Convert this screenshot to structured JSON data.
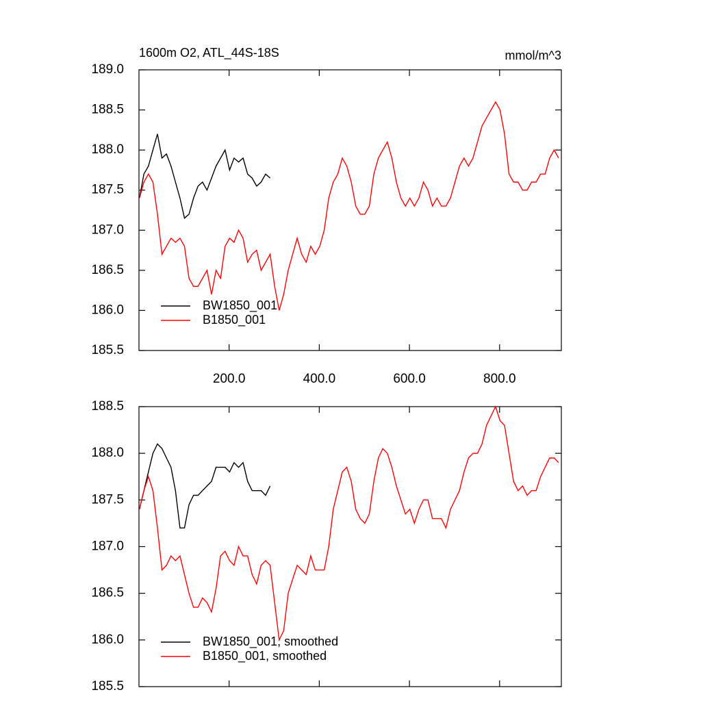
{
  "chart_data": [
    {
      "type": "line",
      "title": "1600m O2, ATL_44S-18S",
      "units": "mmol/m^3",
      "xlim": [
        0,
        937
      ],
      "ylim": [
        185.5,
        189.0
      ],
      "xticks": [
        {
          "value": 200,
          "label": "200.0"
        },
        {
          "value": 400,
          "label": "400.0"
        },
        {
          "value": 600,
          "label": "600.0"
        },
        {
          "value": 800,
          "label": "800.0"
        }
      ],
      "xtick_labels": true,
      "yticks": [
        185.5,
        {
          "value": 186,
          "label": "186.0"
        },
        186.5,
        {
          "value": 187,
          "label": "187.0"
        },
        187.5,
        {
          "value": 188,
          "label": "188.0"
        },
        188.5,
        {
          "value": 189,
          "label": "189.0"
        }
      ],
      "legend": "lower left",
      "series": [
        {
          "name": "BW1850_001",
          "color": "#000000",
          "x": [
            1,
            11,
            21,
            31,
            41,
            51,
            61,
            71,
            81,
            91,
            101,
            111,
            121,
            131,
            141,
            151,
            161,
            171,
            181,
            191,
            201,
            211,
            221,
            231,
            241,
            251,
            261,
            271,
            281,
            291
          ],
          "values": [
            187.4,
            187.7,
            187.8,
            188.0,
            188.2,
            187.9,
            187.95,
            187.8,
            187.6,
            187.4,
            187.15,
            187.2,
            187.4,
            187.55,
            187.6,
            187.5,
            187.65,
            187.8,
            187.9,
            188.0,
            187.75,
            187.9,
            187.85,
            187.9,
            187.7,
            187.65,
            187.55,
            187.6,
            187.7,
            187.65
          ]
        },
        {
          "name": "B1850_001",
          "color": "#ff0000",
          "x": [
            1,
            11,
            21,
            31,
            41,
            51,
            61,
            71,
            81,
            91,
            101,
            111,
            121,
            131,
            141,
            151,
            161,
            171,
            181,
            191,
            201,
            211,
            221,
            231,
            241,
            251,
            261,
            271,
            281,
            291,
            301,
            311,
            321,
            331,
            341,
            351,
            361,
            371,
            381,
            391,
            401,
            411,
            421,
            431,
            441,
            451,
            461,
            471,
            481,
            491,
            501,
            511,
            521,
            531,
            541,
            551,
            561,
            571,
            581,
            591,
            601,
            611,
            621,
            631,
            641,
            651,
            661,
            671,
            681,
            691,
            701,
            711,
            721,
            731,
            741,
            751,
            761,
            771,
            781,
            791,
            801,
            811,
            821,
            831,
            841,
            851,
            861,
            871,
            881,
            891,
            901,
            911,
            921,
            931
          ],
          "values": [
            187.4,
            187.6,
            187.7,
            187.6,
            187.2,
            186.7,
            186.8,
            186.9,
            186.85,
            186.9,
            186.8,
            186.4,
            186.3,
            186.3,
            186.4,
            186.5,
            186.2,
            186.5,
            186.4,
            186.8,
            186.9,
            186.85,
            187.0,
            186.9,
            186.6,
            186.7,
            186.75,
            186.5,
            186.6,
            186.7,
            186.3,
            186.0,
            186.2,
            186.5,
            186.7,
            186.9,
            186.7,
            186.6,
            186.8,
            186.7,
            186.8,
            187.0,
            187.4,
            187.6,
            187.7,
            187.9,
            187.8,
            187.6,
            187.3,
            187.2,
            187.2,
            187.3,
            187.7,
            187.9,
            188.0,
            188.1,
            187.9,
            187.6,
            187.4,
            187.3,
            187.4,
            187.3,
            187.4,
            187.6,
            187.5,
            187.3,
            187.4,
            187.3,
            187.3,
            187.4,
            187.6,
            187.8,
            187.9,
            187.8,
            187.9,
            188.1,
            188.3,
            188.4,
            188.5,
            188.6,
            188.5,
            188.2,
            187.7,
            187.6,
            187.6,
            187.5,
            187.5,
            187.6,
            187.6,
            187.7,
            187.7,
            187.9,
            188.0,
            187.9
          ]
        }
      ]
    },
    {
      "type": "line",
      "xlim": [
        0,
        937
      ],
      "ylim": [
        185.5,
        188.5
      ],
      "xticks": [
        200,
        400,
        600,
        800
      ],
      "xtick_labels": false,
      "yticks": [
        185.5,
        {
          "value": 186,
          "label": "186.0"
        },
        186.5,
        {
          "value": 187,
          "label": "187.0"
        },
        187.5,
        {
          "value": 188,
          "label": "188.0"
        },
        188.5
      ],
      "legend": "lower left",
      "series": [
        {
          "name": "BW1850_001, smoothed",
          "color": "#000000",
          "x": [
            1,
            11,
            21,
            31,
            41,
            51,
            61,
            71,
            81,
            91,
            101,
            111,
            121,
            131,
            141,
            151,
            161,
            171,
            181,
            191,
            201,
            211,
            221,
            231,
            241,
            251,
            261,
            271,
            281,
            291
          ],
          "values": [
            187.4,
            187.6,
            187.8,
            188.0,
            188.1,
            188.05,
            187.95,
            187.85,
            187.6,
            187.2,
            187.2,
            187.45,
            187.55,
            187.55,
            187.6,
            187.65,
            187.7,
            187.85,
            187.85,
            187.85,
            187.8,
            187.9,
            187.85,
            187.9,
            187.7,
            187.6,
            187.6,
            187.6,
            187.55,
            187.65
          ]
        },
        {
          "name": "B1850_001, smoothed",
          "color": "#ff0000",
          "x": [
            1,
            11,
            21,
            31,
            41,
            51,
            61,
            71,
            81,
            91,
            101,
            111,
            121,
            131,
            141,
            151,
            161,
            171,
            181,
            191,
            201,
            211,
            221,
            231,
            241,
            251,
            261,
            271,
            281,
            291,
            301,
            311,
            321,
            331,
            341,
            351,
            361,
            371,
            381,
            391,
            401,
            411,
            421,
            431,
            441,
            451,
            461,
            471,
            481,
            491,
            501,
            511,
            521,
            531,
            541,
            551,
            561,
            571,
            581,
            591,
            601,
            611,
            621,
            631,
            641,
            651,
            661,
            671,
            681,
            691,
            701,
            711,
            721,
            731,
            741,
            751,
            761,
            771,
            781,
            791,
            801,
            811,
            821,
            831,
            841,
            851,
            861,
            871,
            881,
            891,
            901,
            911,
            921,
            931
          ],
          "values": [
            187.4,
            187.6,
            187.75,
            187.6,
            187.2,
            186.75,
            186.8,
            186.9,
            186.85,
            186.9,
            186.7,
            186.5,
            186.35,
            186.35,
            186.45,
            186.4,
            186.3,
            186.55,
            186.9,
            186.95,
            186.85,
            186.8,
            187.0,
            186.9,
            186.9,
            186.7,
            186.6,
            186.8,
            186.85,
            186.8,
            186.4,
            186.0,
            186.1,
            186.5,
            186.65,
            186.8,
            186.75,
            186.7,
            186.9,
            186.75,
            186.75,
            186.75,
            187.0,
            187.4,
            187.6,
            187.8,
            187.85,
            187.7,
            187.4,
            187.3,
            187.25,
            187.35,
            187.7,
            187.95,
            188.05,
            188.0,
            187.85,
            187.65,
            187.5,
            187.35,
            187.4,
            187.25,
            187.4,
            187.5,
            187.5,
            187.3,
            187.3,
            187.3,
            187.2,
            187.4,
            187.5,
            187.6,
            187.8,
            187.95,
            188.0,
            188.0,
            188.1,
            188.3,
            188.4,
            188.5,
            188.35,
            188.3,
            188.0,
            187.7,
            187.6,
            187.65,
            187.55,
            187.6,
            187.6,
            187.75,
            187.85,
            187.95,
            187.95,
            187.9
          ]
        }
      ]
    }
  ]
}
